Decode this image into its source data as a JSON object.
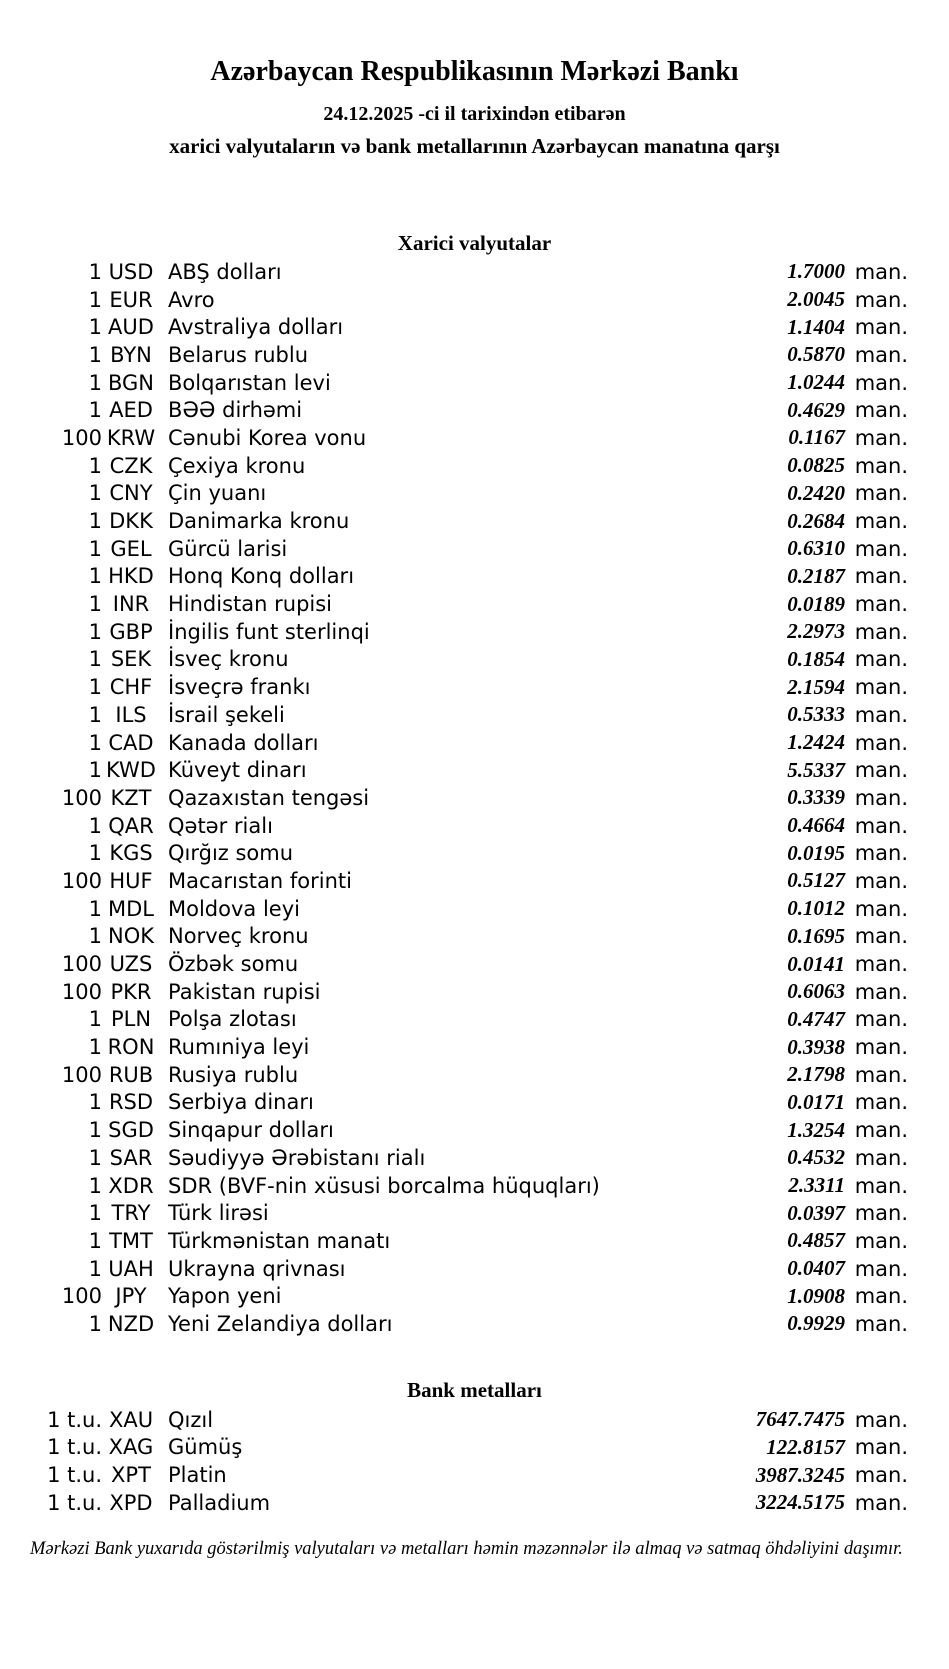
{
  "colors": {
    "text": "#000000",
    "background": "#ffffff"
  },
  "header": {
    "title": "Azərbaycan Respublikasının Mərkəzi Bankı",
    "date_line": "24.12.2025 -ci il tarixindən etibarən",
    "subtitle": "xarici valyutaların və bank metallarının Azərbaycan manatına qarşı"
  },
  "currency_section": {
    "heading": "Xarici valyutalar",
    "unit_label": "man.",
    "rows": [
      {
        "qty": "1",
        "code": "USD",
        "name": "ABŞ dolları",
        "rate": "1.7000"
      },
      {
        "qty": "1",
        "code": "EUR",
        "name": "Avro",
        "rate": "2.0045"
      },
      {
        "qty": "1",
        "code": "AUD",
        "name": "Avstraliya dolları",
        "rate": "1.1404"
      },
      {
        "qty": "1",
        "code": "BYN",
        "name": "Belarus rublu",
        "rate": "0.5870"
      },
      {
        "qty": "1",
        "code": "BGN",
        "name": "Bolqarıstan levi",
        "rate": "1.0244"
      },
      {
        "qty": "1",
        "code": "AED",
        "name": "BƏƏ dirhəmi",
        "rate": "0.4629"
      },
      {
        "qty": "100",
        "code": "KRW",
        "name": "Cənubi Korea vonu",
        "rate": "0.1167"
      },
      {
        "qty": "1",
        "code": "CZK",
        "name": "Çexiya kronu",
        "rate": "0.0825"
      },
      {
        "qty": "1",
        "code": "CNY",
        "name": "Çin yuanı",
        "rate": "0.2420"
      },
      {
        "qty": "1",
        "code": "DKK",
        "name": "Danimarka kronu",
        "rate": "0.2684"
      },
      {
        "qty": "1",
        "code": "GEL",
        "name": "Gürcü larisi",
        "rate": "0.6310"
      },
      {
        "qty": "1",
        "code": "HKD",
        "name": "Honq Konq dolları",
        "rate": "0.2187"
      },
      {
        "qty": "1",
        "code": "INR",
        "name": "Hindistan rupisi",
        "rate": "0.0189"
      },
      {
        "qty": "1",
        "code": "GBP",
        "name": "İngilis funt sterlinqi",
        "rate": "2.2973"
      },
      {
        "qty": "1",
        "code": "SEK",
        "name": "İsveç kronu",
        "rate": "0.1854"
      },
      {
        "qty": "1",
        "code": "CHF",
        "name": "İsveçrə frankı",
        "rate": "2.1594"
      },
      {
        "qty": "1",
        "code": "ILS",
        "name": "İsrail şekeli",
        "rate": "0.5333"
      },
      {
        "qty": "1",
        "code": "CAD",
        "name": "Kanada dolları",
        "rate": "1.2424"
      },
      {
        "qty": "1",
        "code": "KWD",
        "name": "Küveyt dinarı",
        "rate": "5.5337"
      },
      {
        "qty": "100",
        "code": "KZT",
        "name": "Qazaxıstan tengəsi",
        "rate": "0.3339"
      },
      {
        "qty": "1",
        "code": "QAR",
        "name": "Qətər rialı",
        "rate": "0.4664"
      },
      {
        "qty": "1",
        "code": "KGS",
        "name": "Qırğız somu",
        "rate": "0.0195"
      },
      {
        "qty": "100",
        "code": "HUF",
        "name": "Macarıstan forinti",
        "rate": "0.5127"
      },
      {
        "qty": "1",
        "code": "MDL",
        "name": "Moldova leyi",
        "rate": "0.1012"
      },
      {
        "qty": "1",
        "code": "NOK",
        "name": "Norveç kronu",
        "rate": "0.1695"
      },
      {
        "qty": "100",
        "code": "UZS",
        "name": "Özbək somu",
        "rate": "0.0141"
      },
      {
        "qty": "100",
        "code": "PKR",
        "name": "Pakistan rupisi",
        "rate": "0.6063"
      },
      {
        "qty": "1",
        "code": "PLN",
        "name": "Polşa zlotası",
        "rate": "0.4747"
      },
      {
        "qty": "1",
        "code": "RON",
        "name": "Rumıniya leyi",
        "rate": "0.3938"
      },
      {
        "qty": "100",
        "code": "RUB",
        "name": "Rusiya rublu",
        "rate": "2.1798"
      },
      {
        "qty": "1",
        "code": "RSD",
        "name": "Serbiya dinarı",
        "rate": "0.0171"
      },
      {
        "qty": "1",
        "code": "SGD",
        "name": "Sinqapur dolları",
        "rate": "1.3254"
      },
      {
        "qty": "1",
        "code": "SAR",
        "name": "Səudiyyə Ərəbistanı rialı",
        "rate": "0.4532"
      },
      {
        "qty": "1",
        "code": "XDR",
        "name": "SDR (BVF-nin xüsusi borcalma hüquqları)",
        "rate": "2.3311"
      },
      {
        "qty": "1",
        "code": "TRY",
        "name": "Türk lirəsi",
        "rate": "0.0397"
      },
      {
        "qty": "1",
        "code": "TMT",
        "name": "Türkmənistan manatı",
        "rate": "0.4857"
      },
      {
        "qty": "1",
        "code": "UAH",
        "name": "Ukrayna qrivnası",
        "rate": "0.0407"
      },
      {
        "qty": "100",
        "code": "JPY",
        "name": "Yapon yeni",
        "rate": "1.0908"
      },
      {
        "qty": "1",
        "code": "NZD",
        "name": "Yeni Zelandiya dolları",
        "rate": "0.9929"
      }
    ]
  },
  "metal_section": {
    "heading": "Bank metalları",
    "unit_label": "man.",
    "rows": [
      {
        "qty": "1 t.u.",
        "code": "XAU",
        "name": "Qızıl",
        "rate": "7647.7475"
      },
      {
        "qty": "1 t.u.",
        "code": "XAG",
        "name": "Gümüş",
        "rate": "122.8157"
      },
      {
        "qty": "1 t.u.",
        "code": "XPT",
        "name": "Platin",
        "rate": "3987.3245"
      },
      {
        "qty": "1 t.u.",
        "code": "XPD",
        "name": "Palladium",
        "rate": "3224.5175"
      }
    ]
  },
  "footer": {
    "note": "Mərkəzi Bank yuxarıda göstərilmiş valyutaları və metalları həmin məzənnələr ilə almaq və satmaq öhdəliyini daşımır."
  }
}
